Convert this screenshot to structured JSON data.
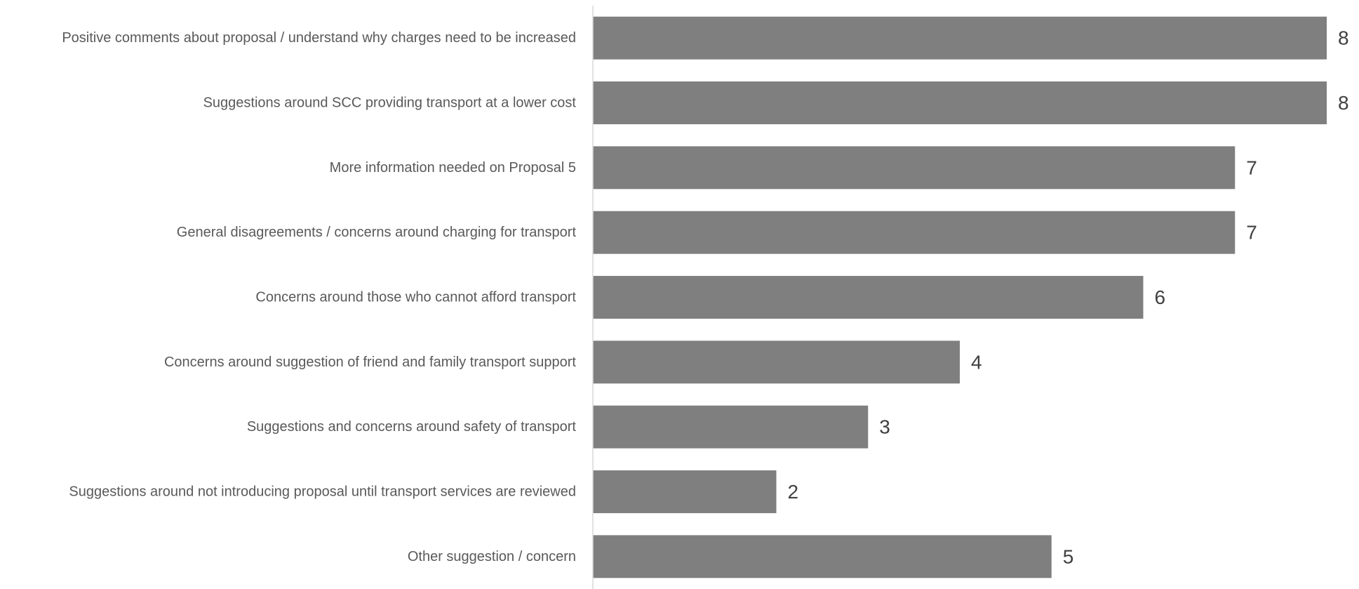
{
  "chart_data": {
    "type": "bar",
    "orientation": "horizontal",
    "title": "",
    "xlabel": "",
    "ylabel": "",
    "categories": [
      "Positive comments about proposal / understand why charges need to be increased",
      "Suggestions around SCC providing transport at a lower cost",
      "More information needed on Proposal 5",
      "General disagreements / concerns around charging for transport",
      "Concerns around those who cannot afford transport",
      "Concerns around suggestion of friend and family transport support",
      "Suggestions and concerns around safety of transport",
      "Suggestions around not introducing proposal until transport services are reviewed",
      "Other suggestion / concern"
    ],
    "values": [
      8,
      8,
      7,
      7,
      6,
      4,
      3,
      2,
      5
    ],
    "xlim": [
      0,
      8
    ],
    "grid": false,
    "legend": "none",
    "data_labels": true,
    "bar_color": "#7f7f7f",
    "axis_color": "#d9d9d9",
    "label_color": "#595959",
    "value_label_color": "#404040"
  }
}
